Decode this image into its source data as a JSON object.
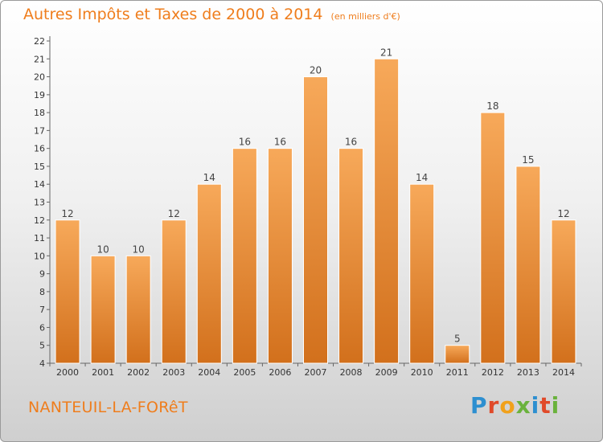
{
  "title": "Autres Impôts et Taxes de 2000 à 2014",
  "subtitle": "(en milliers d'€)",
  "location": "NANTEUIL-LA-FORêT",
  "logo": "Proxiti",
  "colors": {
    "bar_top": "#f7a95a",
    "bar_bottom": "#d2701c",
    "title": "#ef7d1c"
  },
  "chart_data": {
    "type": "bar",
    "title": "Autres Impôts et Taxes de 2000 à 2014",
    "subtitle": "(en milliers d'€)",
    "categories": [
      "2000",
      "2001",
      "2002",
      "2003",
      "2004",
      "2005",
      "2006",
      "2007",
      "2008",
      "2009",
      "2010",
      "2011",
      "2012",
      "2013",
      "2014"
    ],
    "values": [
      12,
      10,
      10,
      12,
      14,
      16,
      16,
      20,
      16,
      21,
      14,
      5,
      18,
      15,
      12
    ],
    "xlabel": "",
    "ylabel": "",
    "ylim": [
      4,
      22
    ],
    "yticks": [
      4,
      5,
      6,
      7,
      8,
      9,
      10,
      11,
      12,
      13,
      14,
      15,
      16,
      17,
      18,
      19,
      20,
      21,
      22
    ],
    "grid": false,
    "data_labels": true
  }
}
